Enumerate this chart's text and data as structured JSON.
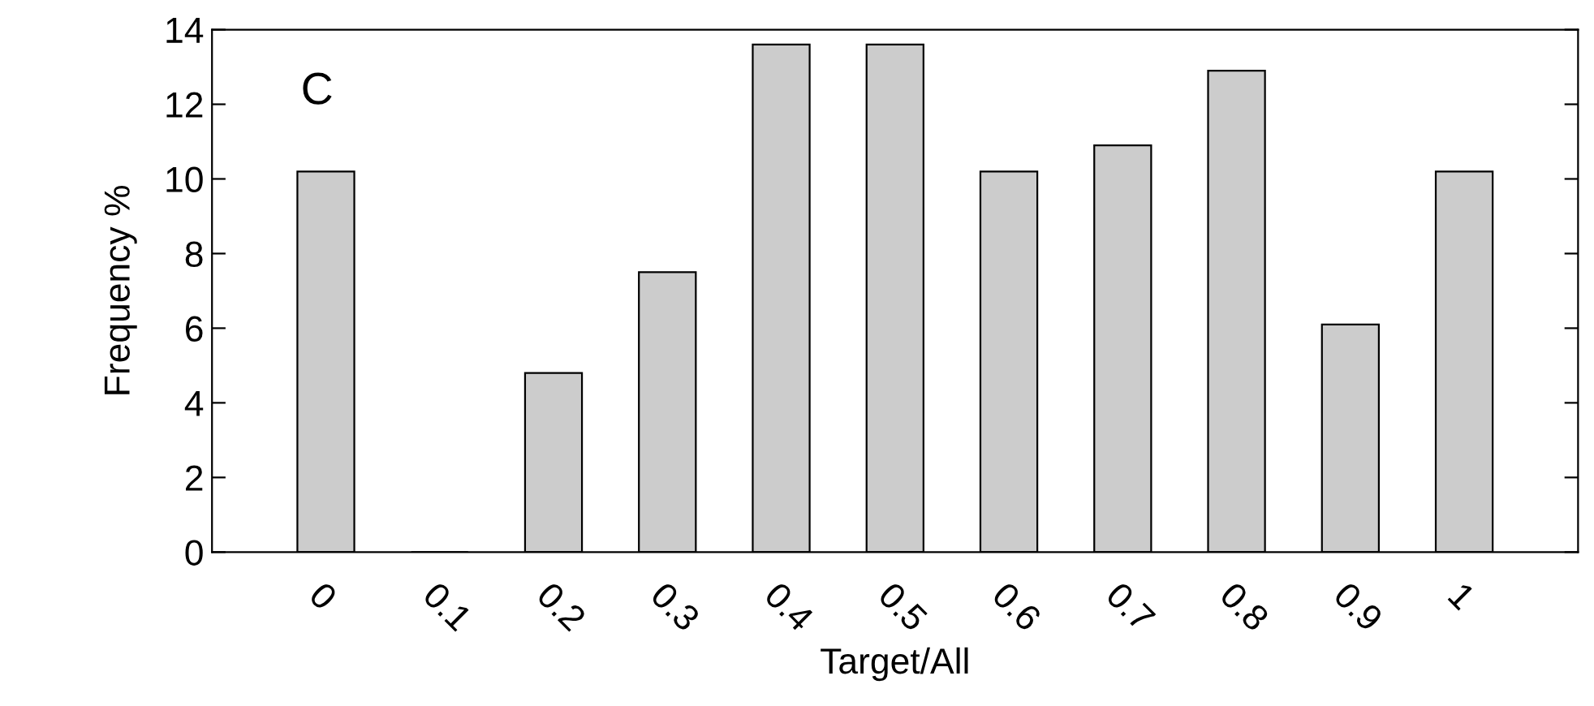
{
  "chart_data": {
    "type": "bar",
    "xlabel": "Target/All",
    "ylabel": "Frequency %",
    "annotations": [
      "C"
    ],
    "categories": [
      "0",
      "0.1",
      "0.2",
      "0.3",
      "0.4",
      "0.5",
      "0.6",
      "0.7",
      "0.8",
      "0.9",
      "1"
    ],
    "values": [
      10.2,
      0,
      4.8,
      7.5,
      13.6,
      13.6,
      10.2,
      10.9,
      12.9,
      6.1,
      10.2
    ],
    "color": "#cccccc",
    "ylim": [
      0,
      14
    ],
    "yticks": [
      0,
      2,
      4,
      6,
      8,
      10,
      12,
      14
    ],
    "grid": false,
    "legend": false
  }
}
